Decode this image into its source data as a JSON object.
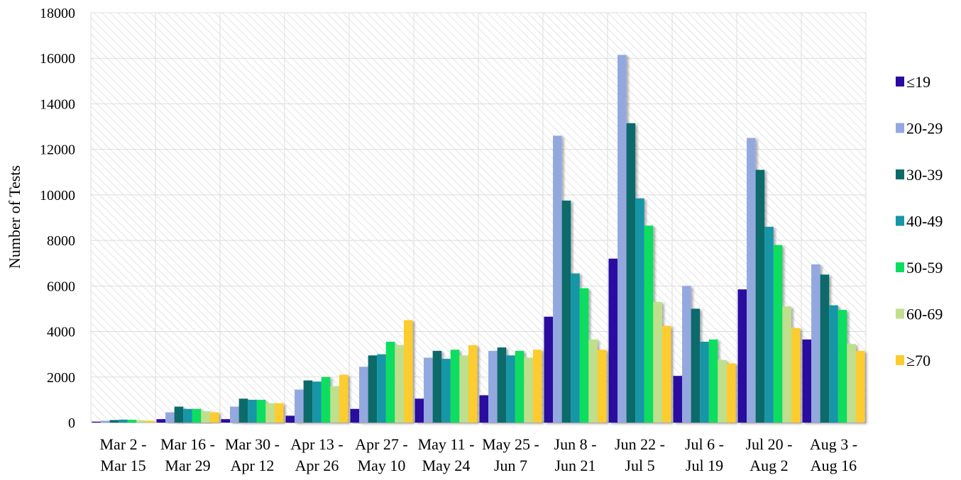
{
  "chart_data": {
    "type": "bar",
    "ylabel": "Number of Tests",
    "ylim": [
      0,
      18000
    ],
    "yticks": [
      "0",
      "2000",
      "4000",
      "6000",
      "8000",
      "10000",
      "12000",
      "14000",
      "16000",
      "18000"
    ],
    "categories": [
      [
        "Mar 2 -",
        "Mar 15"
      ],
      [
        "Mar 16 -",
        "Mar 29"
      ],
      [
        "Mar 30 -",
        "Apr 12"
      ],
      [
        "Apr 13 -",
        "Apr 26"
      ],
      [
        "Apr 27 -",
        "May 10"
      ],
      [
        "May 11 -",
        "May 24"
      ],
      [
        "May 25 -",
        "Jun 7"
      ],
      [
        "Jun 8 -",
        "Jun 21"
      ],
      [
        "Jun 22 -",
        "Jul 5"
      ],
      [
        "Jul 6 -",
        "Jul 19"
      ],
      [
        "Jul 20 -",
        "Aug 2"
      ],
      [
        "Aug 3 -",
        "Aug 16"
      ]
    ],
    "series": [
      {
        "name": "≤19",
        "color": "#2a0aa0",
        "values": [
          40,
          150,
          150,
          300,
          600,
          1050,
          1200,
          4650,
          7200,
          2050,
          5850,
          3650
        ]
      },
      {
        "name": "20-29",
        "color": "#93a8de",
        "values": [
          80,
          450,
          700,
          1450,
          2450,
          2850,
          3150,
          12600,
          16150,
          6000,
          12500,
          6950
        ]
      },
      {
        "name": "30-39",
        "color": "#0b6b6b",
        "values": [
          110,
          700,
          1050,
          1850,
          2950,
          3150,
          3300,
          9750,
          13150,
          5000,
          11100,
          6500
        ]
      },
      {
        "name": "40-49",
        "color": "#1796a6",
        "values": [
          130,
          600,
          1000,
          1800,
          3000,
          2800,
          2950,
          6550,
          9850,
          3550,
          8600,
          5150
        ]
      },
      {
        "name": "50-59",
        "color": "#0bde5e",
        "values": [
          120,
          600,
          1000,
          2000,
          3550,
          3200,
          3150,
          5900,
          8650,
          3650,
          7800,
          4950
        ]
      },
      {
        "name": "60-69",
        "color": "#bfdf8d",
        "values": [
          100,
          500,
          850,
          1600,
          3400,
          2950,
          2850,
          3650,
          5300,
          2750,
          5100,
          3450
        ]
      },
      {
        "name": "≥70",
        "color": "#fdcc2e",
        "values": [
          80,
          450,
          850,
          2100,
          4500,
          3400,
          3200,
          3200,
          4250,
          2600,
          4150,
          3150
        ]
      }
    ],
    "grid": true,
    "legend_position": "right"
  }
}
